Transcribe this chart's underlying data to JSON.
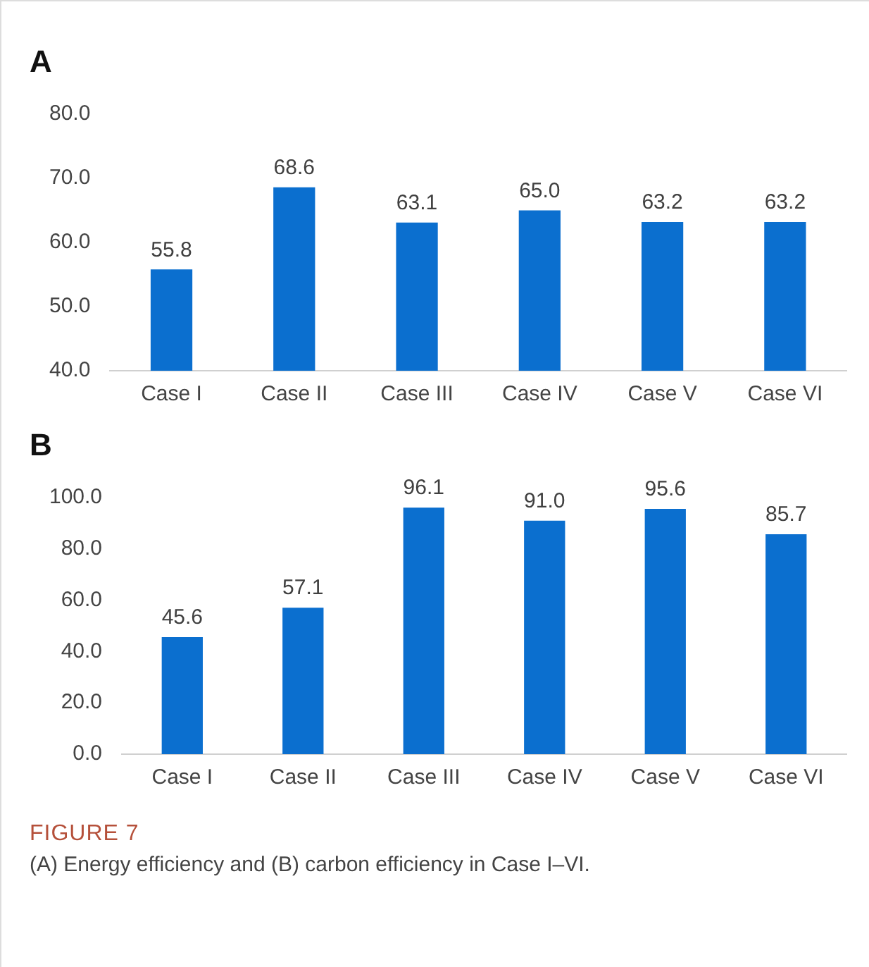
{
  "chart_data": [
    {
      "type": "bar",
      "title": "A",
      "categories": [
        "Case I",
        "Case II",
        "Case III",
        "Case IV",
        "Case V",
        "Case VI"
      ],
      "values": [
        55.8,
        68.6,
        63.1,
        65.0,
        63.2,
        63.2
      ],
      "value_labels": [
        "55.8",
        "68.6",
        "63.1",
        "65.0",
        "63.2",
        "63.2"
      ],
      "color": "#0b6fcf",
      "ylim": [
        40,
        80
      ],
      "yticks": [
        {
          "value": 40,
          "label": "40.0"
        },
        {
          "value": 50,
          "label": "50.0"
        },
        {
          "value": 60,
          "label": "60.0"
        },
        {
          "value": 70,
          "label": "70.0"
        },
        {
          "value": 80,
          "label": "80.0"
        }
      ],
      "grid": false
    },
    {
      "type": "bar",
      "title": "B",
      "categories": [
        "Case I",
        "Case II",
        "Case III",
        "Case IV",
        "Case V",
        "Case VI"
      ],
      "values": [
        45.6,
        57.1,
        96.1,
        91.0,
        95.6,
        85.7
      ],
      "value_labels": [
        "45.6",
        "57.1",
        "96.1",
        "91.0",
        "95.6",
        "85.7"
      ],
      "color": "#0b6fcf",
      "ylim": [
        0,
        100
      ],
      "yticks": [
        {
          "value": 0,
          "label": "0.0"
        },
        {
          "value": 20,
          "label": "20.0"
        },
        {
          "value": 40,
          "label": "40.0"
        },
        {
          "value": 60,
          "label": "60.0"
        },
        {
          "value": 80,
          "label": "80.0"
        },
        {
          "value": 100,
          "label": "100.0"
        }
      ],
      "grid": false,
      "annotations": [
        "FIGURE 7",
        "(A) Energy efficiency and (B) carbon efficiency in Case I–VI."
      ]
    }
  ]
}
